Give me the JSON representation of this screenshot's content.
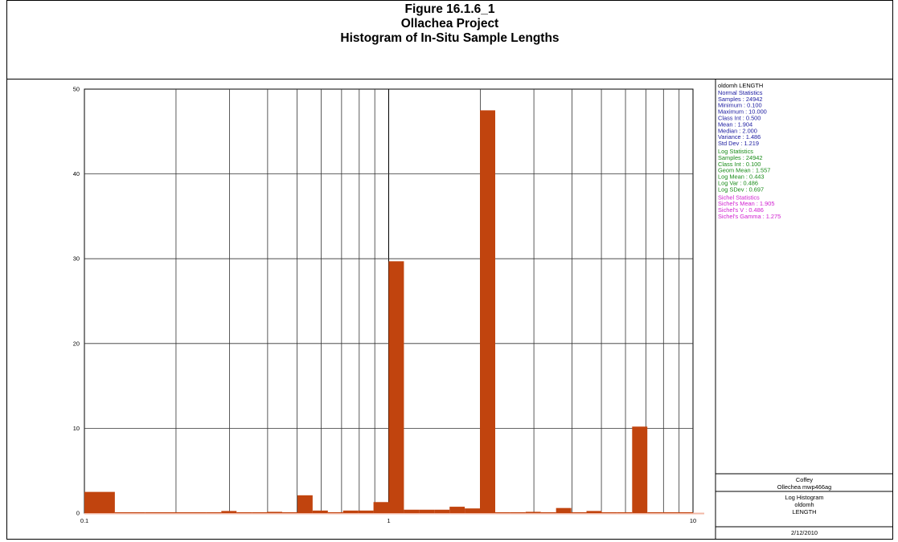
{
  "figure": {
    "number": "Figure 16.1.6_1",
    "project": "Ollachea Project",
    "title": "Histogram of In-Situ Sample Lengths"
  },
  "stats_panel": {
    "header": "oldomh LENGTH",
    "normal": {
      "color": "#1a1aa0",
      "heading": "Normal Statistics",
      "lines": [
        "Samples : 24942",
        "Minimum : 0.100",
        "Maximum : 10.000",
        "Class Int : 0.500",
        "Mean : 1.904",
        "Median : 2.000",
        "Variance : 1.486",
        "Std Dev : 1.219"
      ]
    },
    "log": {
      "color": "#1a8c1a",
      "heading": "Log Statistics",
      "lines": [
        "Samples : 24942",
        "Class Int : 0.100",
        "Geom Mean : 1.557",
        "Log Mean : 0.443",
        "Log Var : 0.486",
        "Log SDev : 0.697"
      ]
    },
    "sichel": {
      "color": "#d020d0",
      "heading": "Sichel Statistics",
      "lines": [
        "Sichel's Mean : 1.905",
        "Sichel's V : 0.486",
        "Sichel's Gamma : 1.275"
      ]
    }
  },
  "footer": {
    "company": "Coffey",
    "file": "Ollechea mwp466ag",
    "type": "Log Histogram",
    "dataset": "oldomh",
    "field": "LENGTH",
    "date": "2/12/2010"
  },
  "chart_data": {
    "type": "bar",
    "x_scale": "log",
    "xlim": [
      0.1,
      10
    ],
    "ylim": [
      0,
      50
    ],
    "x_ticks": [
      "0.1",
      "1",
      "10"
    ],
    "y_ticks": [
      "0",
      "10",
      "20",
      "30",
      "40",
      "50"
    ],
    "bar_color": "#c1440e",
    "grid": true,
    "bars": [
      {
        "from": 0.1,
        "to": 0.1259,
        "value": 2.5
      },
      {
        "from": 0.1259,
        "to": 0.1585,
        "value": 0.1
      },
      {
        "from": 0.1585,
        "to": 0.1995,
        "value": 0.1
      },
      {
        "from": 0.1995,
        "to": 0.2512,
        "value": 0.1
      },
      {
        "from": 0.2512,
        "to": 0.2818,
        "value": 0.1
      },
      {
        "from": 0.2818,
        "to": 0.3162,
        "value": 0.25
      },
      {
        "from": 0.3162,
        "to": 0.3548,
        "value": 0.1
      },
      {
        "from": 0.3548,
        "to": 0.3981,
        "value": 0.1
      },
      {
        "from": 0.3981,
        "to": 0.4467,
        "value": 0.15
      },
      {
        "from": 0.4467,
        "to": 0.5012,
        "value": 0.1
      },
      {
        "from": 0.5012,
        "to": 0.5623,
        "value": 2.1
      },
      {
        "from": 0.5623,
        "to": 0.631,
        "value": 0.3
      },
      {
        "from": 0.631,
        "to": 0.7079,
        "value": 0.1
      },
      {
        "from": 0.7079,
        "to": 0.7943,
        "value": 0.3
      },
      {
        "from": 0.7943,
        "to": 0.8913,
        "value": 0.3
      },
      {
        "from": 0.8913,
        "to": 1.0,
        "value": 1.3
      },
      {
        "from": 1.0,
        "to": 1.122,
        "value": 29.7
      },
      {
        "from": 1.122,
        "to": 1.259,
        "value": 0.4
      },
      {
        "from": 1.259,
        "to": 1.413,
        "value": 0.4
      },
      {
        "from": 1.413,
        "to": 1.585,
        "value": 0.4
      },
      {
        "from": 1.585,
        "to": 1.778,
        "value": 0.75
      },
      {
        "from": 1.778,
        "to": 1.995,
        "value": 0.55
      },
      {
        "from": 1.995,
        "to": 2.239,
        "value": 47.5
      },
      {
        "from": 2.239,
        "to": 2.512,
        "value": 0.1
      },
      {
        "from": 2.512,
        "to": 2.818,
        "value": 0.1
      },
      {
        "from": 2.818,
        "to": 3.162,
        "value": 0.15
      },
      {
        "from": 3.162,
        "to": 3.548,
        "value": 0.1
      },
      {
        "from": 3.548,
        "to": 3.981,
        "value": 0.6
      },
      {
        "from": 3.981,
        "to": 4.467,
        "value": 0.1
      },
      {
        "from": 4.467,
        "to": 5.012,
        "value": 0.25
      },
      {
        "from": 5.012,
        "to": 5.623,
        "value": 0.1
      },
      {
        "from": 5.623,
        "to": 6.31,
        "value": 0.1
      },
      {
        "from": 6.31,
        "to": 7.079,
        "value": 10.2
      },
      {
        "from": 7.079,
        "to": 7.943,
        "value": 0.1
      },
      {
        "from": 7.943,
        "to": 8.913,
        "value": 0.1
      },
      {
        "from": 8.913,
        "to": 10.0,
        "value": 0.1
      }
    ]
  }
}
